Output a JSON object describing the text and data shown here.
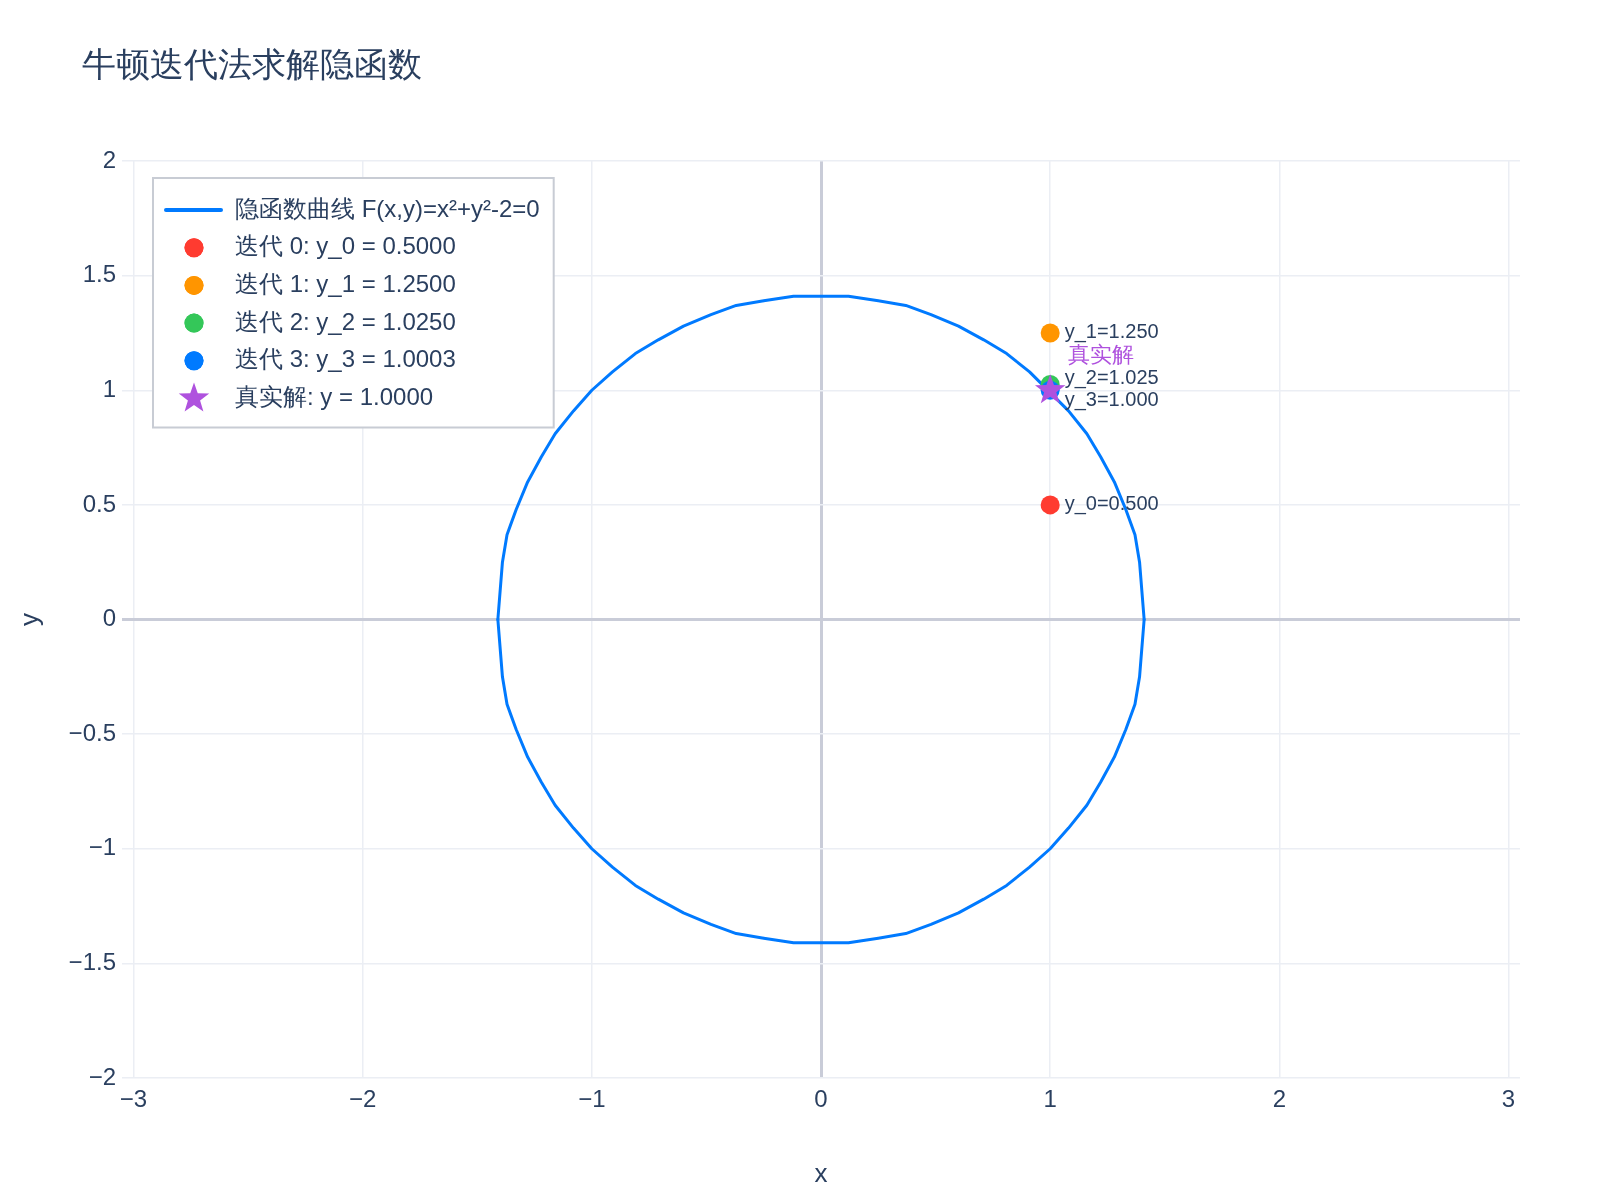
{
  "chart_data": {
    "type": "line",
    "title": "牛顿迭代法求解隐函数",
    "xlabel": "x",
    "ylabel": "y",
    "xlim": [
      -3.05,
      3.05
    ],
    "xticks": [
      {
        "value": -3,
        "label": "−3"
      },
      {
        "value": -2,
        "label": "−2"
      },
      {
        "value": -1,
        "label": "−1"
      },
      0,
      1,
      2,
      3
    ],
    "ylim": [
      -2,
      2
    ],
    "yticks": [
      {
        "value": -2,
        "label": "−2"
      },
      {
        "value": -1.5,
        "label": "−1.5"
      },
      {
        "value": -1,
        "label": "−1"
      },
      {
        "value": -0.5,
        "label": "−0.5"
      },
      0,
      0.5,
      1,
      1.5,
      2
    ],
    "grid": true,
    "legend": "top left",
    "series": [
      {
        "name": "隐函数曲线 F(x,y)=x²+y²-2=0",
        "color": "#007aff",
        "marker": "none",
        "x": [
          -1.41,
          -1.39,
          -1.37,
          -1.33,
          -1.28,
          -1.22,
          -1.16,
          -1.08,
          -1,
          -0.91,
          -0.81,
          -0.71,
          -0.6,
          -0.48,
          -0.37,
          -0.25,
          -0.12,
          0,
          0.12,
          0.25,
          0.37,
          0.48,
          0.6,
          0.71,
          0.81,
          0.91,
          1.08,
          1.16,
          1.22,
          1.28,
          1.33,
          1.37,
          1.39,
          1.41
        ],
        "values": [
          0,
          0.25,
          0.37,
          0.48,
          0.6,
          0.71,
          0.81,
          0.91,
          1,
          1.08,
          1.16,
          1.22,
          1.28,
          1.33,
          1.37,
          1.39,
          1.41,
          1.41,
          1.41,
          1.39,
          1.37,
          1.33,
          1.28,
          1.22,
          1.16,
          1.08,
          0.91,
          0.81,
          0.71,
          0.6,
          0.48,
          0.37,
          0.25,
          0
        ]
      },
      {
        "color": "#007aff",
        "marker": "none",
        "x": [
          -1.41,
          -1.39,
          -1.37,
          -1.33,
          -1.28,
          -1.22,
          -1.16,
          -1.08,
          -1,
          -0.91,
          -0.81,
          -0.71,
          -0.6,
          -0.48,
          -0.37,
          -0.25,
          -0.12,
          0,
          0.12,
          0.25,
          0.37,
          0.48,
          0.6,
          0.71,
          0.81,
          0.91,
          1,
          1.08,
          1.16,
          1.22,
          1.28,
          1.33,
          1.37,
          1.39,
          1.41
        ],
        "values": [
          0,
          -0.25,
          -0.37,
          -0.48,
          -0.6,
          -0.71,
          -0.81,
          -0.91,
          -1,
          -1.08,
          -1.16,
          -1.22,
          -1.28,
          -1.33,
          -1.37,
          -1.39,
          -1.41,
          -1.41,
          -1.41,
          -1.39,
          -1.37,
          -1.33,
          -1.28,
          -1.22,
          -1.16,
          -1.08,
          -1,
          -0.91,
          -0.81,
          -0.71,
          -0.6,
          -0.48,
          -0.37,
          -0.25,
          0
        ]
      },
      {
        "name": "迭代 0: y_0 = 0.5000",
        "type": "scatter",
        "color": "#ff3b30",
        "marker": "circle",
        "x": [
          1
        ],
        "values": [
          0.5
        ],
        "value_labels": [
          "y_0=0.500"
        ]
      },
      {
        "name": "迭代 1: y_1 = 1.2500",
        "type": "scatter",
        "color": "#ff9500",
        "marker": "circle",
        "x": [
          1
        ],
        "values": [
          1.25
        ],
        "value_labels": [
          "y_1=1.250"
        ]
      },
      {
        "name": "迭代 2: y_2 = 1.0250",
        "type": "scatter",
        "color": "#34c759",
        "marker": "circle",
        "x": [
          1
        ],
        "values": [
          1.025
        ],
        "value_labels": [
          "y_2=1.025"
        ]
      },
      {
        "name": "迭代 3: y_3 = 1.0003",
        "type": "scatter",
        "color": "#007aff",
        "marker": "circle",
        "x": [
          1
        ],
        "values": [
          1.0003
        ],
        "value_labels": [
          "y_3=1.000"
        ]
      },
      {
        "name": "真实解: y = 1.0000",
        "type": "scatter",
        "color": "#af52de",
        "marker": "star",
        "x": [
          1
        ],
        "values": [
          1
        ]
      }
    ],
    "annotations": [
      {
        "text": "真实解",
        "x": 1,
        "y": 1
      }
    ]
  }
}
